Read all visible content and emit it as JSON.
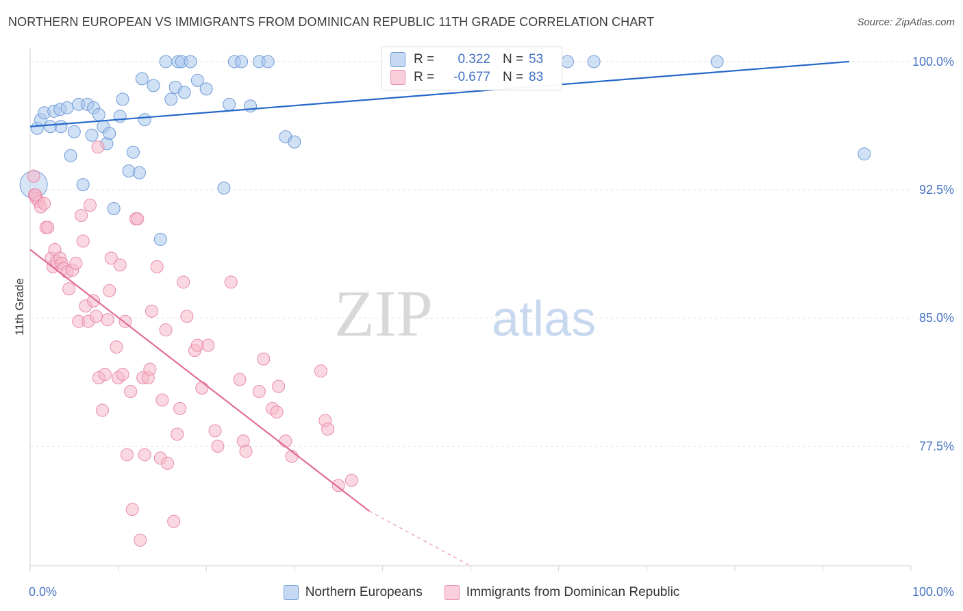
{
  "title": "NORTHERN EUROPEAN VS IMMIGRANTS FROM DOMINICAN REPUBLIC 11TH GRADE CORRELATION CHART",
  "source": "Source: ZipAtlas.com",
  "watermark": {
    "zip": "ZIP",
    "atlas": "atlas"
  },
  "colors": {
    "blue_fill": "#a9c6ec",
    "blue_stroke": "#6f9bd6",
    "blue_line": "#2467c8",
    "pink_fill": "#f5b8cb",
    "pink_stroke": "#e889a8",
    "pink_line": "#e06c97",
    "tick_label": "#4472c4",
    "grid": "#e3e3e3"
  },
  "legend": {
    "rows": [
      {
        "r_label": "R =",
        "r_value": "0.322",
        "n_label": "N =",
        "n_value": "53"
      },
      {
        "r_label": "R =",
        "r_value": "-0.677",
        "n_label": "N =",
        "n_value": "83"
      }
    ]
  },
  "chart_data": {
    "type": "scatter",
    "title": "NORTHERN EUROPEAN VS IMMIGRANTS FROM DOMINICAN REPUBLIC 11TH GRADE CORRELATION CHART",
    "xlabel": "",
    "ylabel": "11th Grade",
    "xlim": [
      0,
      100
    ],
    "ylim": [
      70.5,
      100.8
    ],
    "x_tick_labels": [
      "0.0%",
      "100.0%"
    ],
    "y_ticks": [
      77.5,
      85.0,
      92.5,
      100.0
    ],
    "y_tick_labels": [
      "77.5%",
      "85.0%",
      "92.5%",
      "100.0%"
    ],
    "grid": true,
    "legend_position": "bottom",
    "series": [
      {
        "name": "Northern Europeans",
        "trend": {
          "x": [
            0,
            93
          ],
          "y": [
            96.2,
            100.0
          ]
        },
        "points": [
          [
            0.8,
            96.1
          ],
          [
            1.2,
            96.6
          ],
          [
            1.6,
            97.0
          ],
          [
            2.3,
            96.2
          ],
          [
            2.7,
            97.1
          ],
          [
            3.4,
            97.2
          ],
          [
            3.5,
            96.2
          ],
          [
            4.2,
            97.3
          ],
          [
            4.6,
            94.5
          ],
          [
            5.0,
            95.9
          ],
          [
            5.5,
            97.5
          ],
          [
            6.0,
            92.8
          ],
          [
            6.5,
            97.5
          ],
          [
            7.0,
            95.7
          ],
          [
            7.2,
            97.3
          ],
          [
            7.8,
            96.9
          ],
          [
            8.3,
            96.2
          ],
          [
            8.7,
            95.2
          ],
          [
            9.0,
            95.8
          ],
          [
            9.5,
            91.4
          ],
          [
            10.2,
            96.8
          ],
          [
            10.5,
            97.8
          ],
          [
            11.2,
            93.6
          ],
          [
            11.7,
            94.7
          ],
          [
            12.4,
            93.5
          ],
          [
            12.7,
            99.0
          ],
          [
            13.0,
            96.6
          ],
          [
            14.0,
            98.6
          ],
          [
            14.8,
            89.6
          ],
          [
            15.4,
            100.0
          ],
          [
            16.0,
            97.8
          ],
          [
            16.5,
            98.5
          ],
          [
            16.8,
            100.0
          ],
          [
            17.2,
            100.0
          ],
          [
            17.5,
            98.2
          ],
          [
            18.2,
            100.0
          ],
          [
            19.0,
            98.9
          ],
          [
            20.0,
            98.4
          ],
          [
            22.0,
            92.6
          ],
          [
            22.6,
            97.5
          ],
          [
            23.2,
            100.0
          ],
          [
            24.0,
            100.0
          ],
          [
            25.0,
            97.4
          ],
          [
            26.0,
            100.0
          ],
          [
            27.0,
            100.0
          ],
          [
            29.0,
            95.6
          ],
          [
            30.0,
            95.3
          ],
          [
            41.0,
            100.0
          ],
          [
            61.0,
            100.0
          ],
          [
            64.0,
            100.0
          ],
          [
            78.0,
            100.0
          ],
          [
            94.7,
            94.6
          ],
          [
            0.4,
            92.8
          ]
        ]
      },
      {
        "name": "Immigrants from Dominican Republic",
        "trend": {
          "x": [
            0,
            38.5
          ],
          "y": [
            89.0,
            73.7
          ]
        },
        "trend_dashed": {
          "x": [
            38.5,
            50
          ],
          "y": [
            73.7,
            70.5
          ]
        },
        "points": [
          [
            0.4,
            93.3
          ],
          [
            0.5,
            92.2
          ],
          [
            0.7,
            92.0
          ],
          [
            1.0,
            91.8
          ],
          [
            1.2,
            91.5
          ],
          [
            1.6,
            91.7
          ],
          [
            1.8,
            90.3
          ],
          [
            2.0,
            90.3
          ],
          [
            2.4,
            88.5
          ],
          [
            2.6,
            88.0
          ],
          [
            2.8,
            89.0
          ],
          [
            3.0,
            88.3
          ],
          [
            3.4,
            88.5
          ],
          [
            3.6,
            88.2
          ],
          [
            3.8,
            87.9
          ],
          [
            4.2,
            87.7
          ],
          [
            4.4,
            86.7
          ],
          [
            4.8,
            87.8
          ],
          [
            5.2,
            88.2
          ],
          [
            5.5,
            84.8
          ],
          [
            5.8,
            91.0
          ],
          [
            6.0,
            89.5
          ],
          [
            6.3,
            85.7
          ],
          [
            6.6,
            84.8
          ],
          [
            6.8,
            91.6
          ],
          [
            7.2,
            86.0
          ],
          [
            7.5,
            85.1
          ],
          [
            7.7,
            95.0
          ],
          [
            7.8,
            81.5
          ],
          [
            8.2,
            79.6
          ],
          [
            8.5,
            81.7
          ],
          [
            8.8,
            84.9
          ],
          [
            9.0,
            86.6
          ],
          [
            9.2,
            88.5
          ],
          [
            9.8,
            83.3
          ],
          [
            10.0,
            81.5
          ],
          [
            10.2,
            88.1
          ],
          [
            10.5,
            81.7
          ],
          [
            10.8,
            84.8
          ],
          [
            11.0,
            77.0
          ],
          [
            11.4,
            80.7
          ],
          [
            11.6,
            73.8
          ],
          [
            12.0,
            90.8
          ],
          [
            12.2,
            90.8
          ],
          [
            12.5,
            72.0
          ],
          [
            12.8,
            81.5
          ],
          [
            13.0,
            77.0
          ],
          [
            13.4,
            81.5
          ],
          [
            13.6,
            82.0
          ],
          [
            13.8,
            85.4
          ],
          [
            14.4,
            88.0
          ],
          [
            14.8,
            76.8
          ],
          [
            15.0,
            80.2
          ],
          [
            15.4,
            84.3
          ],
          [
            15.6,
            76.5
          ],
          [
            16.3,
            73.1
          ],
          [
            16.7,
            78.2
          ],
          [
            17.0,
            79.7
          ],
          [
            17.4,
            87.1
          ],
          [
            17.8,
            85.1
          ],
          [
            18.7,
            83.1
          ],
          [
            19.0,
            83.4
          ],
          [
            19.5,
            80.9
          ],
          [
            20.2,
            83.4
          ],
          [
            21.0,
            78.4
          ],
          [
            21.3,
            77.5
          ],
          [
            22.8,
            87.1
          ],
          [
            23.8,
            81.4
          ],
          [
            24.2,
            77.8
          ],
          [
            24.5,
            77.2
          ],
          [
            26.0,
            80.7
          ],
          [
            26.5,
            82.6
          ],
          [
            27.5,
            79.7
          ],
          [
            28.0,
            79.5
          ],
          [
            28.2,
            81.0
          ],
          [
            29.0,
            77.8
          ],
          [
            29.7,
            76.9
          ],
          [
            33.0,
            81.9
          ],
          [
            33.5,
            79.0
          ],
          [
            33.8,
            78.5
          ],
          [
            35.0,
            75.2
          ],
          [
            36.5,
            75.5
          ],
          [
            0.6,
            92.2
          ]
        ]
      }
    ]
  }
}
